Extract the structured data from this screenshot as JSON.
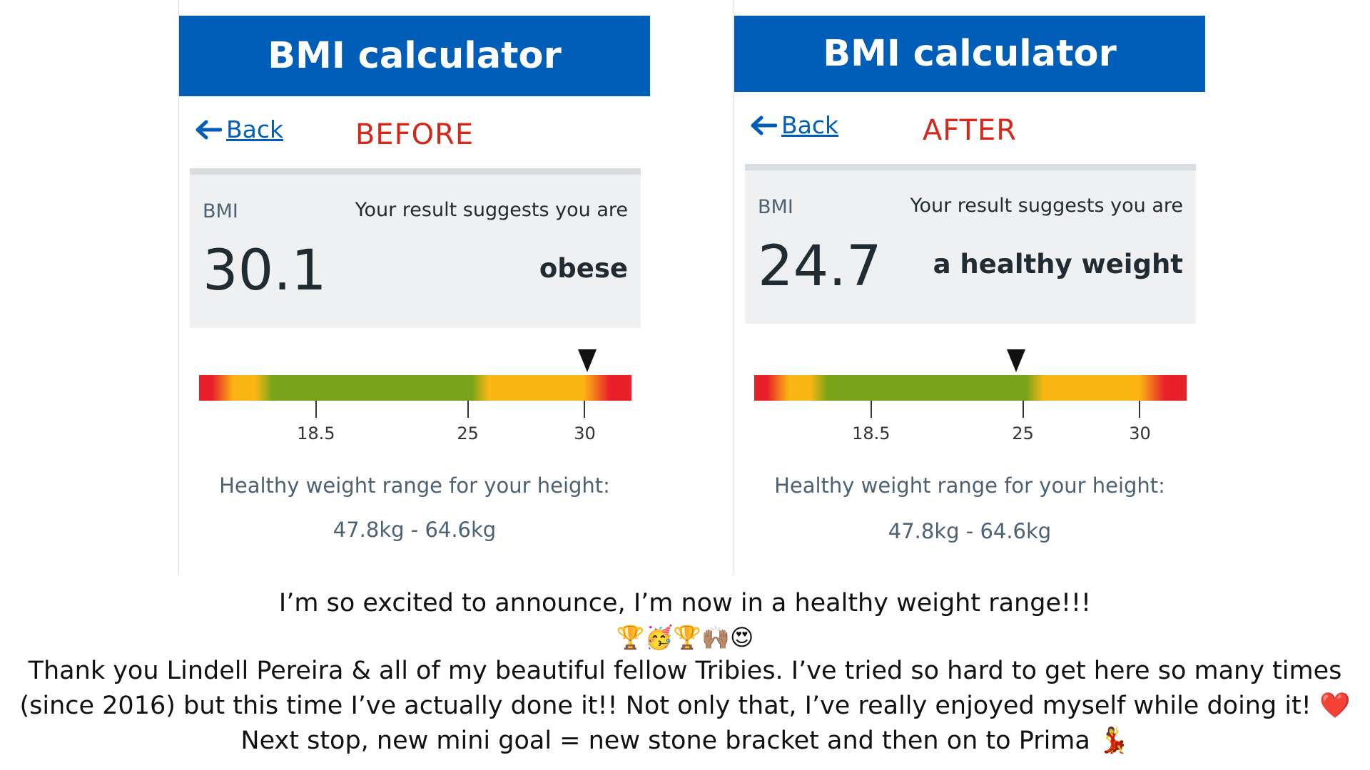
{
  "colors": {
    "header_blue": "#005eb8",
    "stage_red": "#d5281b",
    "gauge_red": "#e8202a",
    "gauge_yellow": "#fbb613",
    "gauge_green": "#78a419"
  },
  "gauge_scale": {
    "min": 13.5,
    "max": 32.0,
    "ticks": [
      18.5,
      25,
      30
    ]
  },
  "panels": [
    {
      "header_title": "BMI calculator",
      "back_icon": "left-arrow-icon",
      "back_label": "Back",
      "stage_label": "BEFORE",
      "bmi_label": "BMI",
      "bmi_value": "30.1",
      "suggest_text": "Your result suggests you are",
      "category": "obese",
      "marker_value": 30.1,
      "tick_labels": [
        "18.5",
        "25",
        "30"
      ],
      "range_label": "Healthy weight range for your height:",
      "range_value": "47.8kg - 64.6kg"
    },
    {
      "header_title": "BMI calculator",
      "back_icon": "left-arrow-icon",
      "back_label": "Back",
      "stage_label": "AFTER",
      "bmi_label": "BMI",
      "bmi_value": "24.7",
      "suggest_text": "Your result suggests you are",
      "category": "a healthy weight",
      "marker_value": 24.7,
      "tick_labels": [
        "18.5",
        "25",
        "30"
      ],
      "range_label": "Healthy weight range for your height:",
      "range_value": "47.8kg - 64.6kg"
    }
  ],
  "caption": {
    "line1": "I’m so excited to announce, I’m now in a healthy weight range!!!",
    "emojis": "🏆🥳🏆🙌🏽😍",
    "line2": "Thank you Lindell Pereira & all of my beautiful fellow Tribies. I’ve tried so hard to get here so many times",
    "line3": "(since 2016) but this time I’ve actually done it!! Not only that, I’ve really enjoyed myself while doing it! ❤️",
    "line4": "Next stop, new mini goal = new stone bracket and then on to Prima 💃"
  }
}
